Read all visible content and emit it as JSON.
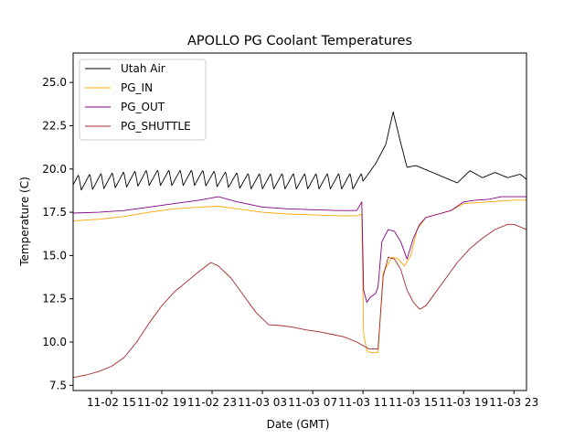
{
  "chart_data": {
    "type": "line",
    "title": "APOLLO PG Coolant Temperatures",
    "xlabel": "Date (GMT)",
    "ylabel": "Temperature (C)",
    "x_unit": "hours since 11-02 00:00 GMT",
    "xlim": [
      11.95,
      48.0
    ],
    "ylim": [
      7.2,
      26.7
    ],
    "grid": false,
    "legend_position": "top-left",
    "x_ticks": [
      {
        "value": 15,
        "label": "11-02 15"
      },
      {
        "value": 19,
        "label": "11-02 19"
      },
      {
        "value": 23,
        "label": "11-02 23"
      },
      {
        "value": 27,
        "label": "11-03 03"
      },
      {
        "value": 31,
        "label": "11-03 07"
      },
      {
        "value": 35,
        "label": "11-03 11"
      },
      {
        "value": 39,
        "label": "11-03 15"
      },
      {
        "value": 43,
        "label": "11-03 19"
      },
      {
        "value": 47,
        "label": "11-03 23"
      }
    ],
    "y_ticks": [
      {
        "value": 7.5,
        "label": "7.5"
      },
      {
        "value": 10.0,
        "label": "10.0"
      },
      {
        "value": 12.5,
        "label": "12.5"
      },
      {
        "value": 15.0,
        "label": "15.0"
      },
      {
        "value": 17.5,
        "label": "17.5"
      },
      {
        "value": 20.0,
        "label": "20.0"
      },
      {
        "value": 22.5,
        "label": "22.5"
      },
      {
        "value": 25.0,
        "label": "25.0"
      }
    ],
    "series": [
      {
        "name": "Utah Air",
        "color": "#000000",
        "x": [
          11.95,
          14,
          16,
          18,
          20,
          22,
          24,
          26,
          28,
          30,
          32,
          34,
          35.0,
          36.0,
          36.8,
          37.4,
          38.0,
          38.5,
          39.2,
          40.2,
          41.5,
          42.5,
          43.5,
          44.5,
          45.5,
          46.5,
          47.5,
          48.0
        ],
        "y": [
          19.2,
          19.3,
          19.4,
          19.5,
          19.5,
          19.5,
          19.4,
          19.3,
          19.3,
          19.3,
          19.3,
          19.3,
          19.3,
          20.3,
          21.4,
          23.3,
          21.5,
          20.1,
          20.2,
          19.9,
          19.5,
          19.2,
          19.9,
          19.5,
          19.8,
          19.5,
          19.7,
          19.4
        ],
        "oscillation": {
          "period_hours": 0.9,
          "amplitude": 0.45,
          "until_x": 35.0
        }
      },
      {
        "name": "PG_IN",
        "color": "#FFA500",
        "x": [
          11.95,
          14,
          16,
          18,
          20,
          22,
          23.5,
          25,
          27,
          29,
          31,
          33,
          34.5,
          34.9,
          35.05,
          35.3,
          35.6,
          36.0,
          36.2,
          36.6,
          37.3,
          37.8,
          38.3,
          38.8,
          39.3,
          40.0,
          41.0,
          42.0,
          43.0,
          44.0,
          45.0,
          46.0,
          47.0,
          48.0
        ],
        "y": [
          17.0,
          17.1,
          17.25,
          17.5,
          17.7,
          17.8,
          17.85,
          17.7,
          17.5,
          17.4,
          17.35,
          17.3,
          17.3,
          17.4,
          10.5,
          9.5,
          9.4,
          9.4,
          9.4,
          14.0,
          14.9,
          14.8,
          14.4,
          15.0,
          16.5,
          17.2,
          17.4,
          17.6,
          18.0,
          18.05,
          18.1,
          18.15,
          18.2,
          18.2
        ]
      },
      {
        "name": "PG_OUT",
        "color": "#800080",
        "x": [
          11.95,
          14,
          16,
          18,
          20,
          22,
          23.5,
          25,
          27,
          29,
          31,
          33,
          34.5,
          34.9,
          35.05,
          35.3,
          35.6,
          36.0,
          36.2,
          36.5,
          37.0,
          37.5,
          38.0,
          38.5,
          39.0,
          39.5,
          40.0,
          41.0,
          42.0,
          43.0,
          44.0,
          45.0,
          46.0,
          47.0,
          48.0
        ],
        "y": [
          17.45,
          17.5,
          17.6,
          17.8,
          18.0,
          18.2,
          18.4,
          18.1,
          17.8,
          17.7,
          17.65,
          17.6,
          17.6,
          18.1,
          13.0,
          12.3,
          12.6,
          12.8,
          13.2,
          15.8,
          16.5,
          16.4,
          15.8,
          14.8,
          16.0,
          16.8,
          17.2,
          17.4,
          17.6,
          18.1,
          18.2,
          18.25,
          18.4,
          18.4,
          18.4
        ]
      },
      {
        "name": "PG_SHUTTLE",
        "color": "#A52A2A",
        "x": [
          11.95,
          13,
          14,
          15,
          16,
          17,
          18,
          19,
          20,
          21,
          22,
          22.9,
          23.5,
          24.5,
          25.5,
          26.5,
          27.5,
          28.5,
          29.5,
          30.5,
          31.5,
          32.5,
          33.5,
          34.5,
          35.0,
          35.5,
          36.0,
          36.2,
          36.6,
          37.0,
          37.5,
          38.0,
          38.5,
          39.0,
          39.5,
          40.0,
          40.5,
          41.5,
          42.5,
          43.5,
          44.5,
          45.5,
          46.5,
          47.0,
          48.0
        ],
        "y": [
          7.95,
          8.1,
          8.3,
          8.6,
          9.1,
          10.0,
          11.1,
          12.1,
          12.9,
          13.5,
          14.1,
          14.6,
          14.4,
          13.7,
          12.7,
          11.7,
          11.0,
          10.95,
          10.85,
          10.7,
          10.6,
          10.45,
          10.3,
          10.0,
          9.8,
          9.6,
          9.6,
          9.6,
          13.8,
          14.9,
          14.8,
          14.2,
          13.0,
          12.3,
          11.9,
          12.1,
          12.6,
          13.6,
          14.6,
          15.4,
          16.0,
          16.5,
          16.8,
          16.8,
          16.5
        ]
      }
    ]
  }
}
